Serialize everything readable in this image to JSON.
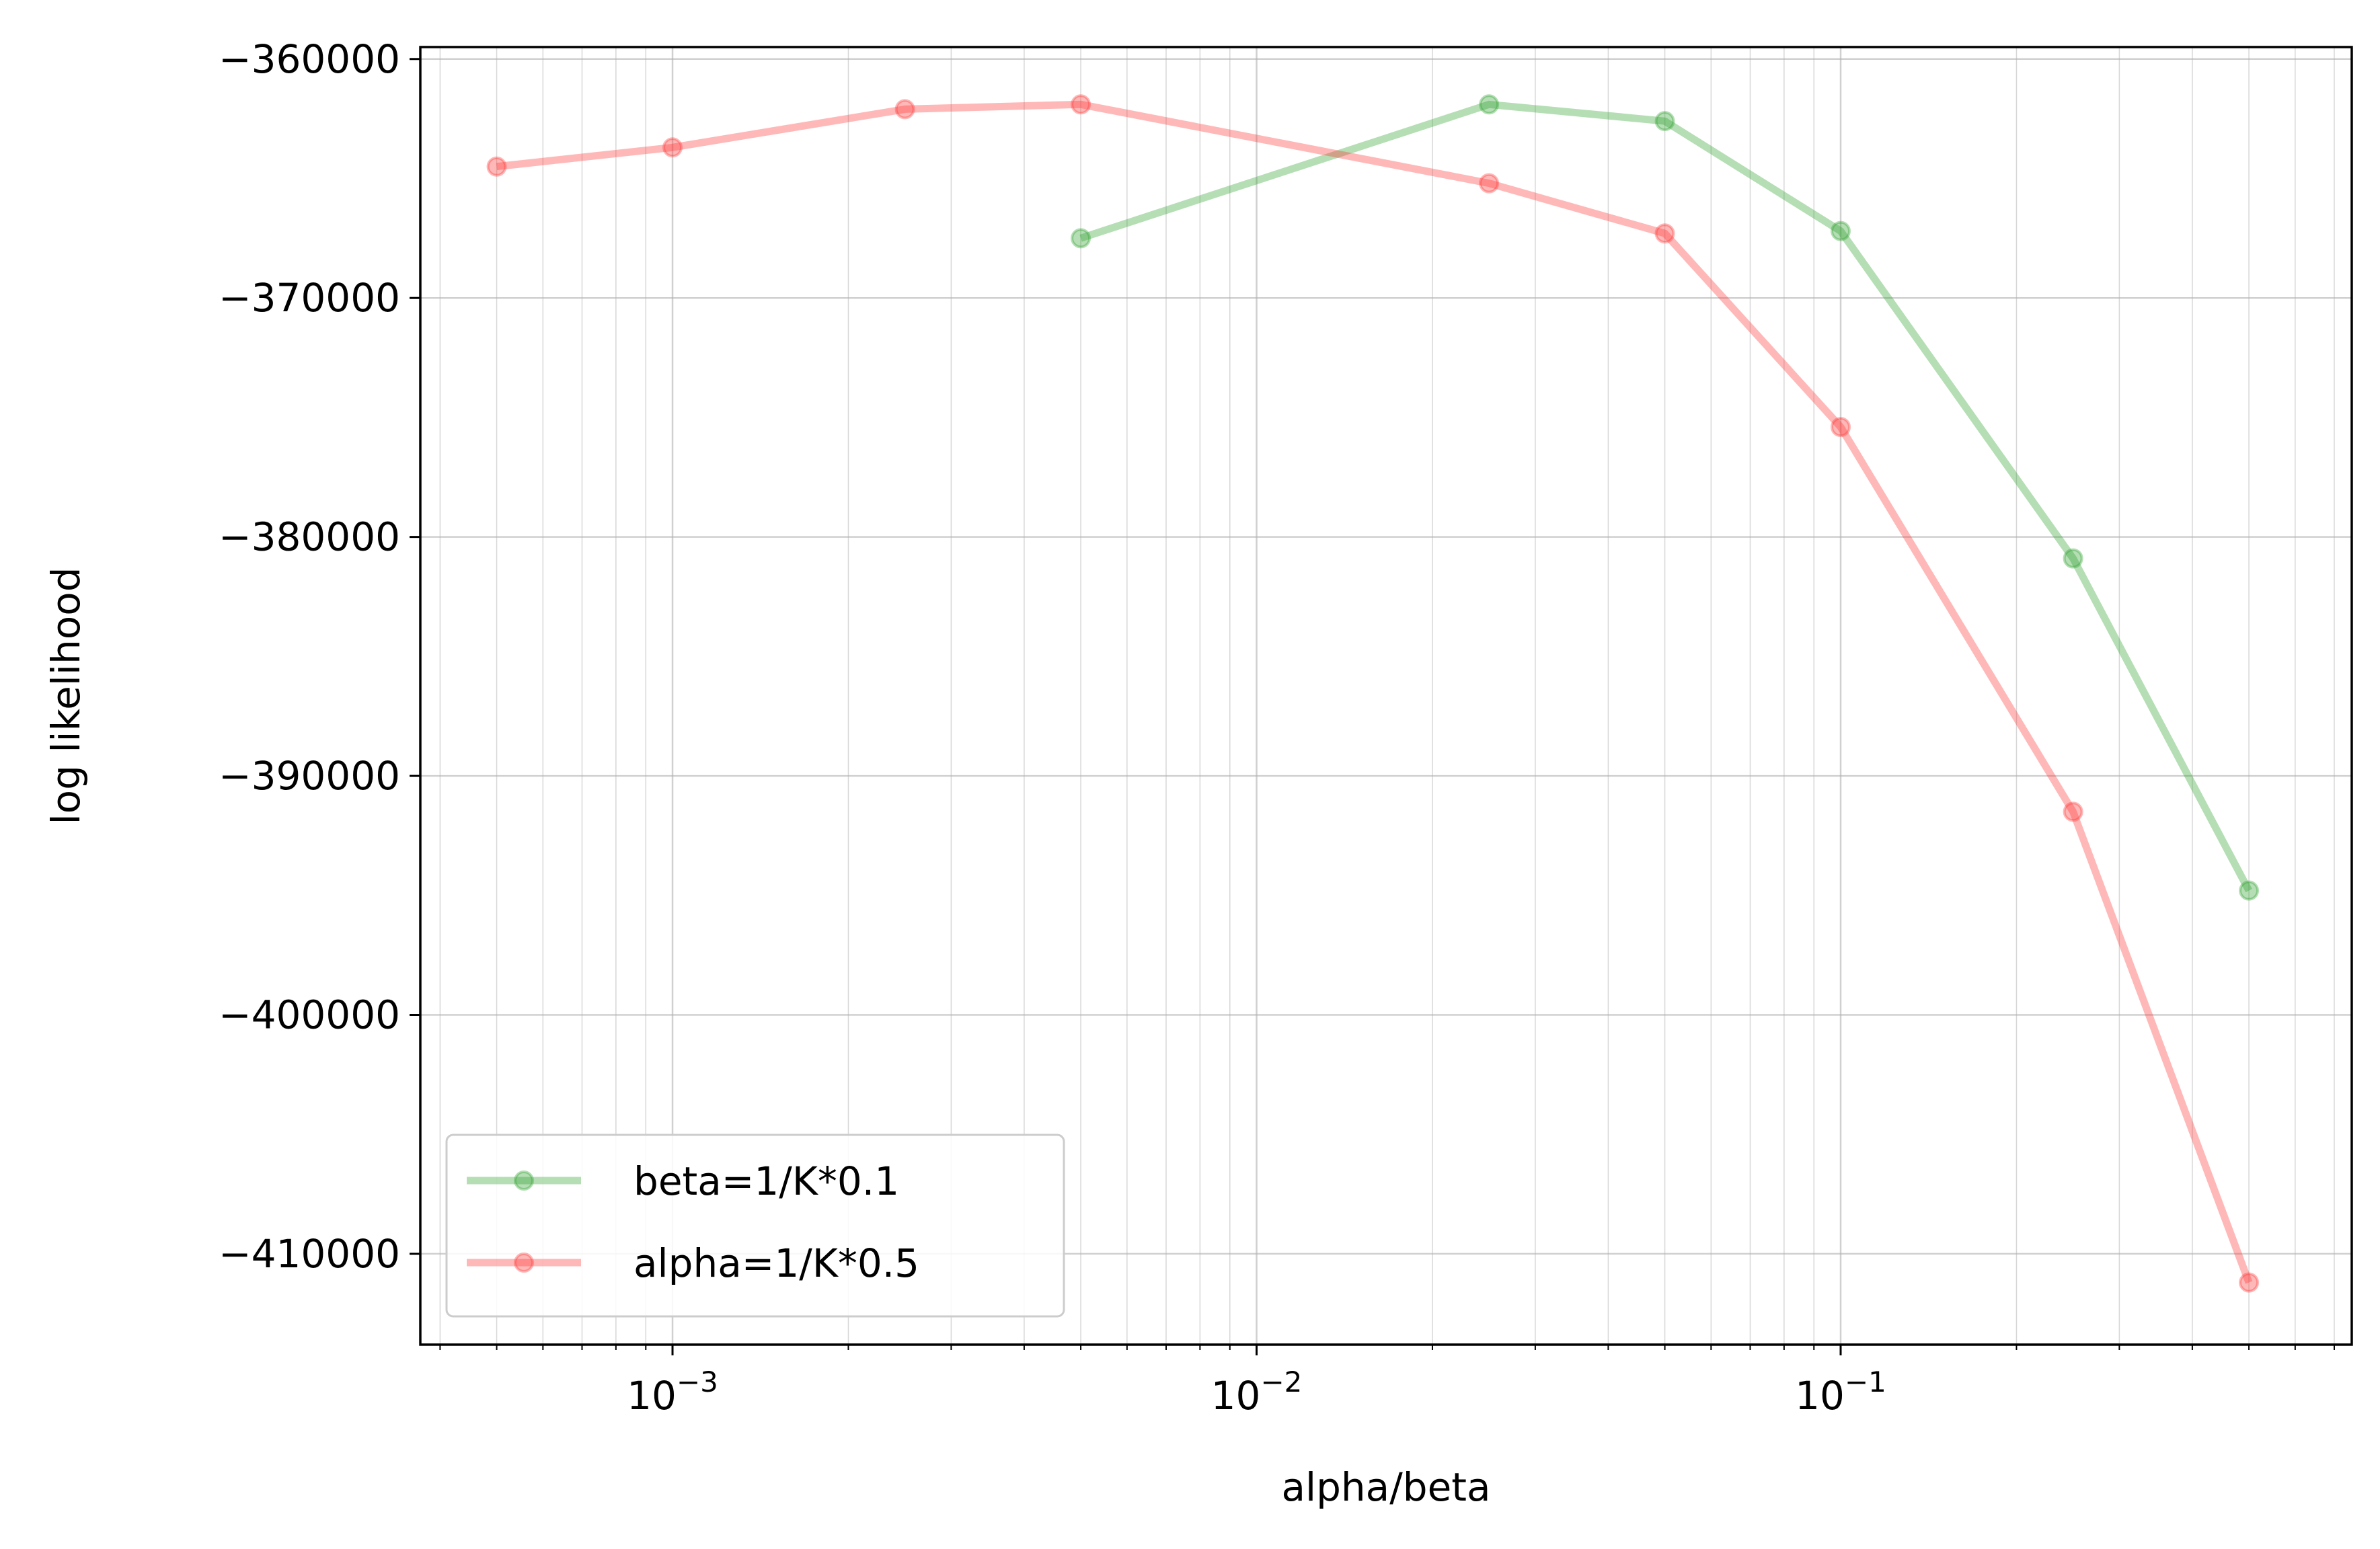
{
  "chart_data": {
    "type": "line",
    "title": "",
    "xlabel": "alpha/beta",
    "ylabel": "log likelihood",
    "xscale": "log",
    "xlim": [
      0.00037,
      0.75
    ],
    "ylim": [
      -413800,
      -359500
    ],
    "grid": true,
    "legend_position": "lower-left",
    "x_ticks": [
      {
        "value": 0.001,
        "label": "10−3"
      },
      {
        "value": 0.01,
        "label": "10−2"
      },
      {
        "value": 0.1,
        "label": "10−1"
      }
    ],
    "y_ticks": [
      {
        "value": -360000,
        "label": "−360000"
      },
      {
        "value": -370000,
        "label": "−370000"
      },
      {
        "value": -380000,
        "label": "−380000"
      },
      {
        "value": -390000,
        "label": "−390000"
      },
      {
        "value": -400000,
        "label": "−400000"
      },
      {
        "value": -410000,
        "label": "−410000"
      }
    ],
    "series": [
      {
        "name": "beta=1/K*0.1",
        "color": "#2ca02c",
        "x": [
          0.005,
          0.025,
          0.05,
          0.1,
          0.25,
          0.5
        ],
        "y": [
          -367500,
          -361900,
          -362600,
          -367200,
          -380900,
          -394800
        ]
      },
      {
        "name": "alpha=1/K*0.5",
        "color": "#ff3333",
        "x": [
          0.0005,
          0.001,
          0.0025,
          0.005,
          0.025,
          0.05,
          0.1,
          0.25,
          0.5
        ],
        "y": [
          -364500,
          -363700,
          -362100,
          -361900,
          -365200,
          -367300,
          -375400,
          -391500,
          -411200
        ]
      }
    ]
  }
}
